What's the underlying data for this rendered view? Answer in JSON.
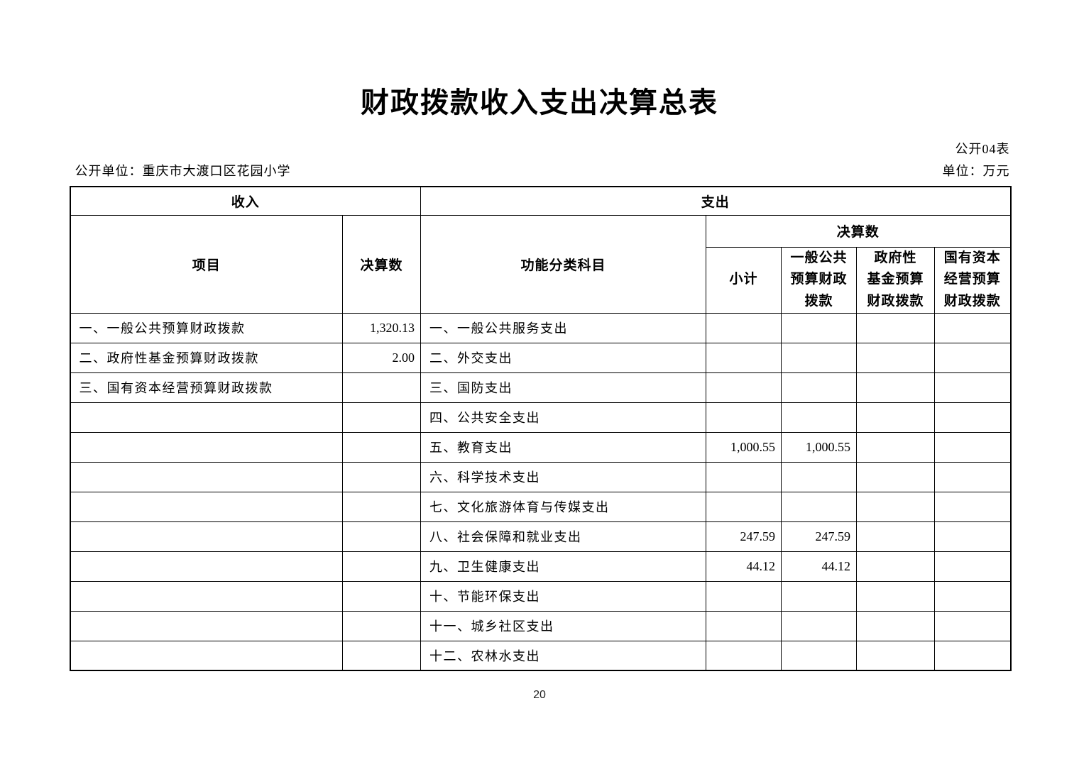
{
  "page": {
    "title": "财政拨款收入支出决算总表",
    "table_code": "公开04表",
    "publisher_label": "公开单位：重庆市大渡口区花园小学",
    "unit_label": "单位：万元",
    "page_number": "20"
  },
  "table": {
    "sections": {
      "income": "收入",
      "expense": "支出"
    },
    "headers": {
      "income_item": "项目",
      "income_amount": "决算数",
      "expense_item": "功能分类科目",
      "expense_amount_group": "决算数",
      "expense_subcols": [
        "小计",
        "一般公共\n预算财政\n拨款",
        "政府性\n基金预算\n财政拨款",
        "国有资本\n经营预算\n财政拨款"
      ]
    },
    "rows": [
      {
        "income_item": "一、一般公共预算财政拨款",
        "income_amount": "1,320.13",
        "expense_item": "一、一般公共服务支出",
        "subtotal": "",
        "general_budget": "",
        "gov_fund": "",
        "state_capital": ""
      },
      {
        "income_item": "二、政府性基金预算财政拨款",
        "income_amount": "2.00",
        "expense_item": "二、外交支出",
        "subtotal": "",
        "general_budget": "",
        "gov_fund": "",
        "state_capital": ""
      },
      {
        "income_item": "三、国有资本经营预算财政拨款",
        "income_amount": "",
        "expense_item": "三、国防支出",
        "subtotal": "",
        "general_budget": "",
        "gov_fund": "",
        "state_capital": ""
      },
      {
        "income_item": "",
        "income_amount": "",
        "expense_item": "四、公共安全支出",
        "subtotal": "",
        "general_budget": "",
        "gov_fund": "",
        "state_capital": ""
      },
      {
        "income_item": "",
        "income_amount": "",
        "expense_item": "五、教育支出",
        "subtotal": "1,000.55",
        "general_budget": "1,000.55",
        "gov_fund": "",
        "state_capital": ""
      },
      {
        "income_item": "",
        "income_amount": "",
        "expense_item": "六、科学技术支出",
        "subtotal": "",
        "general_budget": "",
        "gov_fund": "",
        "state_capital": ""
      },
      {
        "income_item": "",
        "income_amount": "",
        "expense_item": "七、文化旅游体育与传媒支出",
        "subtotal": "",
        "general_budget": "",
        "gov_fund": "",
        "state_capital": ""
      },
      {
        "income_item": "",
        "income_amount": "",
        "expense_item": "八、社会保障和就业支出",
        "subtotal": "247.59",
        "general_budget": "247.59",
        "gov_fund": "",
        "state_capital": ""
      },
      {
        "income_item": "",
        "income_amount": "",
        "expense_item": "九、卫生健康支出",
        "subtotal": "44.12",
        "general_budget": "44.12",
        "gov_fund": "",
        "state_capital": ""
      },
      {
        "income_item": "",
        "income_amount": "",
        "expense_item": "十、节能环保支出",
        "subtotal": "",
        "general_budget": "",
        "gov_fund": "",
        "state_capital": ""
      },
      {
        "income_item": "",
        "income_amount": "",
        "expense_item": "十一、城乡社区支出",
        "subtotal": "",
        "general_budget": "",
        "gov_fund": "",
        "state_capital": ""
      },
      {
        "income_item": "",
        "income_amount": "",
        "expense_item": "十二、农林水支出",
        "subtotal": "",
        "general_budget": "",
        "gov_fund": "",
        "state_capital": ""
      }
    ]
  }
}
